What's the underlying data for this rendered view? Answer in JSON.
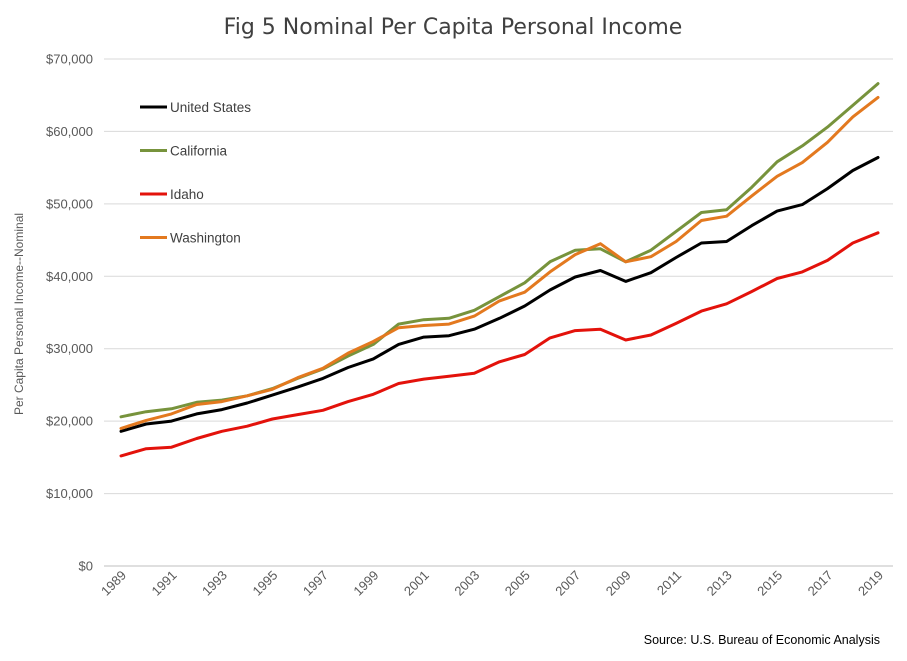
{
  "chart_data": {
    "type": "line",
    "title": "Fig 5 Nominal Per Capita Personal Income",
    "xlabel": "",
    "ylabel": "Per Capita Personal Income--Nominal",
    "source": "Source: U.S. Bureau of Economic Analysis",
    "x": [
      1989,
      1990,
      1991,
      1992,
      1993,
      1994,
      1995,
      1996,
      1997,
      1998,
      1999,
      2000,
      2001,
      2002,
      2003,
      2004,
      2005,
      2006,
      2007,
      2008,
      2009,
      2010,
      2011,
      2012,
      2013,
      2014,
      2015,
      2016,
      2017,
      2018,
      2019
    ],
    "x_tick_labels": [
      "1989",
      "1991",
      "1993",
      "1995",
      "1997",
      "1999",
      "2001",
      "2003",
      "2005",
      "2007",
      "2009",
      "2011",
      "2013",
      "2015",
      "2017",
      "2019"
    ],
    "ylim": [
      0,
      70000
    ],
    "y_ticks": [
      0,
      10000,
      20000,
      30000,
      40000,
      50000,
      60000,
      70000
    ],
    "y_tick_labels": [
      "$0",
      "$10,000",
      "$20,000",
      "$30,000",
      "$40,000",
      "$50,000",
      "$60,000",
      "$70,000"
    ],
    "grid": "horizontal",
    "legend_position": "top-left",
    "series": [
      {
        "name": "United States",
        "color": "#000000",
        "values": [
          18600,
          19600,
          20000,
          21000,
          21600,
          22500,
          23600,
          24700,
          25900,
          27400,
          28600,
          30600,
          31600,
          31800,
          32700,
          34200,
          35900,
          38100,
          39900,
          40800,
          39300,
          40500,
          42600,
          44600,
          44800,
          47000,
          49000,
          49900,
          52100,
          54600,
          56400
        ]
      },
      {
        "name": "California",
        "color": "#77933c",
        "values": [
          20600,
          21300,
          21700,
          22600,
          22900,
          23500,
          24500,
          25900,
          27200,
          29000,
          30600,
          33400,
          34000,
          34200,
          35300,
          37200,
          39100,
          42000,
          43600,
          43800,
          42000,
          43600,
          46200,
          48800,
          49200,
          52300,
          55800,
          58000,
          60600,
          63600,
          66600
        ]
      },
      {
        "name": "Idaho",
        "color": "#e3120b",
        "values": [
          15200,
          16200,
          16400,
          17600,
          18600,
          19300,
          20300,
          20900,
          21500,
          22700,
          23700,
          25200,
          25800,
          26200,
          26600,
          28200,
          29200,
          31500,
          32500,
          32700,
          31200,
          31900,
          33500,
          35200,
          36200,
          37900,
          39700,
          40600,
          42200,
          44600,
          46000
        ]
      },
      {
        "name": "Washington",
        "color": "#e3791f",
        "values": [
          19000,
          20100,
          21000,
          22300,
          22700,
          23500,
          24400,
          26000,
          27300,
          29400,
          31000,
          32900,
          33200,
          33400,
          34500,
          36600,
          37800,
          40600,
          43000,
          44500,
          42000,
          42700,
          44800,
          47700,
          48300,
          51100,
          53800,
          55700,
          58500,
          62000,
          64700
        ]
      }
    ]
  }
}
